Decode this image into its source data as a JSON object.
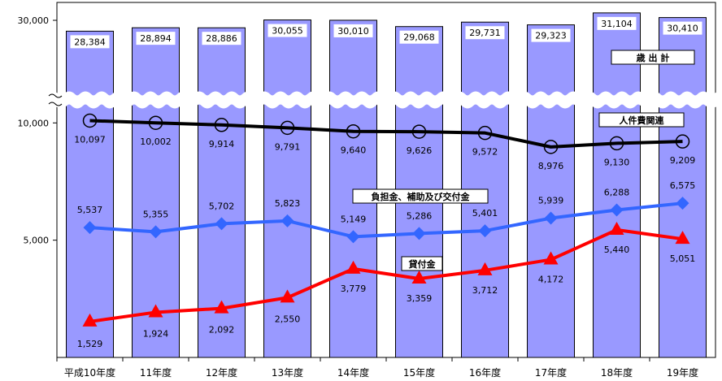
{
  "chart_data": {
    "type": "bar",
    "categories": [
      "平成10年度",
      "11年度",
      "12年度",
      "13年度",
      "14年度",
      "15年度",
      "16年度",
      "17年度",
      "18年度",
      "19年度"
    ],
    "y_tick_labels": [
      "30,000",
      "10,000",
      "5,000"
    ],
    "bar_series": {
      "name": "歳 出 計",
      "values": [
        28384,
        28894,
        28886,
        30055,
        30010,
        29068,
        29731,
        29323,
        31104,
        30410
      ],
      "value_labels": [
        "28,384",
        "28,894",
        "28,886",
        "30,055",
        "30,010",
        "29,068",
        "29,731",
        "29,323",
        "31,104",
        "30,410"
      ],
      "color": "#9999ff"
    },
    "line_series": [
      {
        "name": "人件費関連",
        "values": [
          10097,
          10002,
          9914,
          9791,
          9640,
          9626,
          9572,
          8976,
          9130,
          9209
        ],
        "value_labels": [
          "10,097",
          "10,002",
          "9,914",
          "9,791",
          "9,640",
          "9,626",
          "9,572",
          "8,976",
          "9,130",
          "9,209"
        ],
        "color": "#000000",
        "marker": "open-circle"
      },
      {
        "name": "負担金、補助及び交付金",
        "values": [
          5537,
          5355,
          5702,
          5823,
          5149,
          5286,
          5401,
          5939,
          6288,
          6575
        ],
        "value_labels": [
          "5,537",
          "5,355",
          "5,702",
          "5,823",
          "5,149",
          "5,286",
          "5,401",
          "5,939",
          "6,288",
          "6,575"
        ],
        "color": "#3366ff",
        "marker": "diamond"
      },
      {
        "name": "貸付金",
        "values": [
          1529,
          1924,
          2092,
          2550,
          3779,
          3359,
          3712,
          4172,
          5440,
          5051
        ],
        "value_labels": [
          "1,529",
          "1,924",
          "2,092",
          "2,550",
          "3,779",
          "3,359",
          "3,712",
          "4,172",
          "5,440",
          "5,051"
        ],
        "color": "#ff0000",
        "marker": "triangle"
      }
    ],
    "axis_break": true,
    "grid": false
  }
}
